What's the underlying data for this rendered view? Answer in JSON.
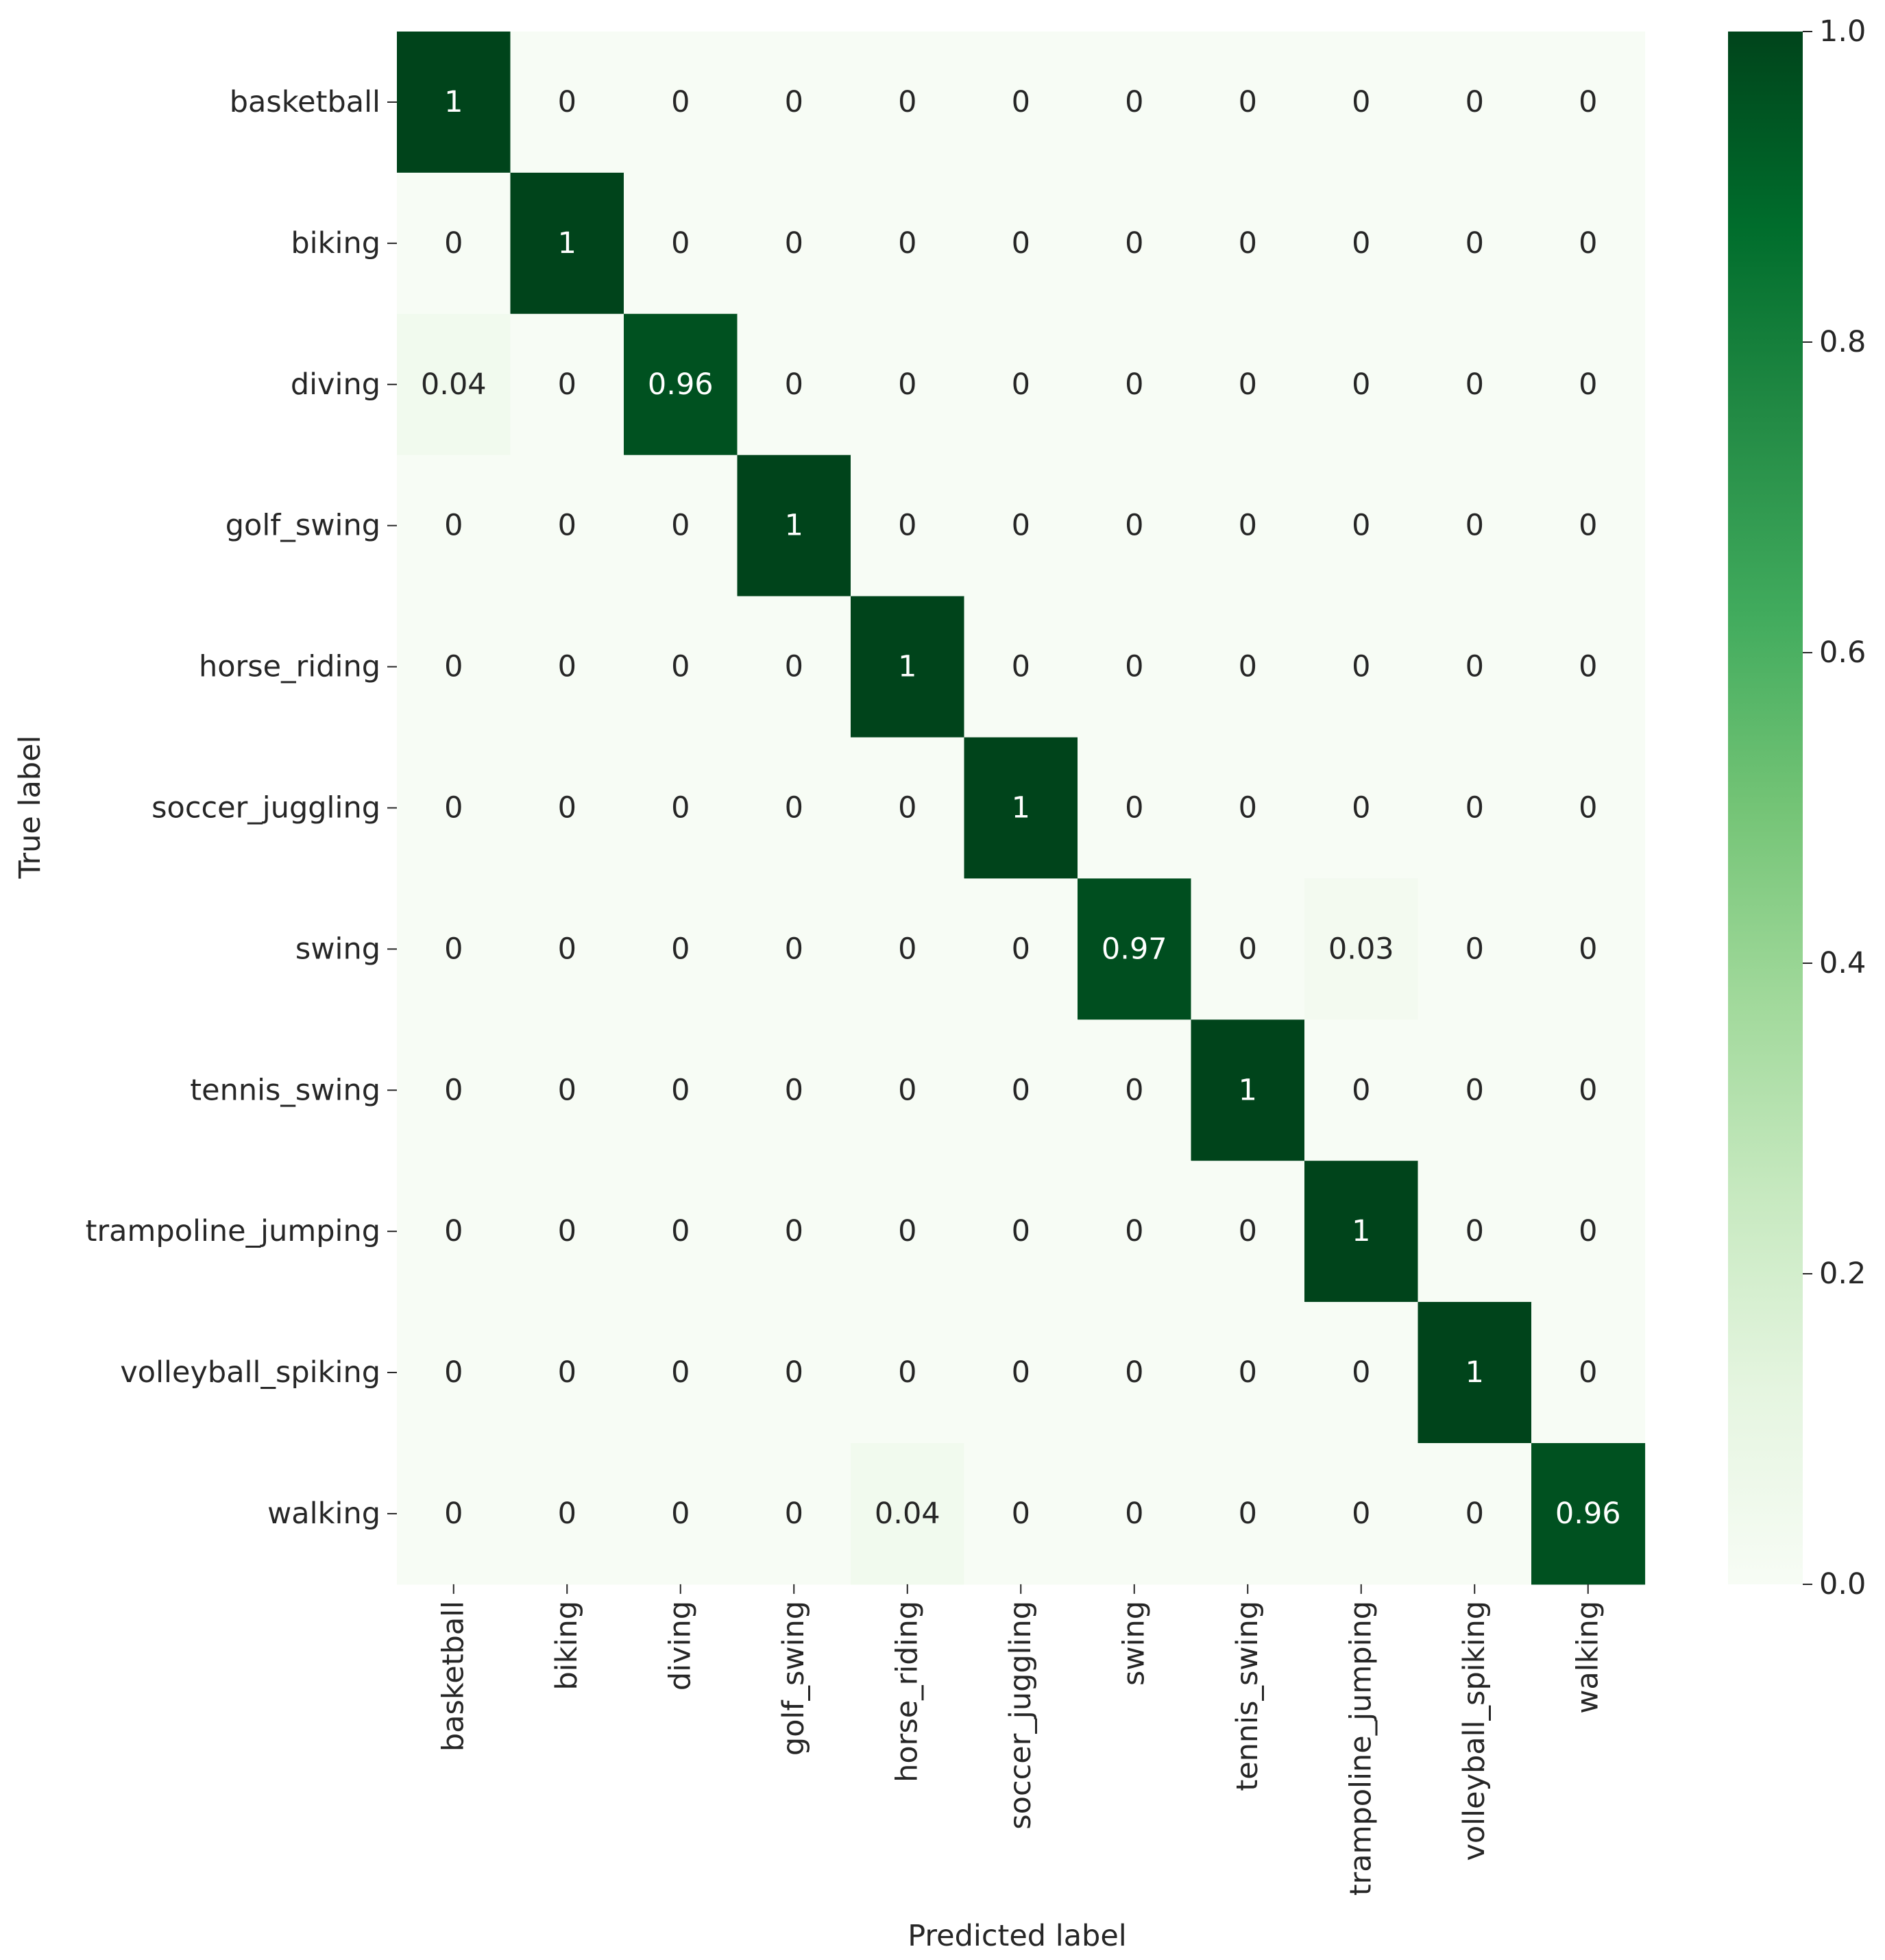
{
  "chart_data": {
    "type": "heatmap",
    "title": "",
    "xlabel": "Predicted label",
    "ylabel": "True label",
    "x_categories": [
      "basketball",
      "biking",
      "diving",
      "golf_swing",
      "horse_riding",
      "soccer_juggling",
      "swing",
      "tennis_swing",
      "trampoline_jumping",
      "volleyball_spiking",
      "walking"
    ],
    "y_categories": [
      "basketball",
      "biking",
      "diving",
      "golf_swing",
      "horse_riding",
      "soccer_juggling",
      "swing",
      "tennis_swing",
      "trampoline_jumping",
      "volleyball_spiking",
      "walking"
    ],
    "values": [
      [
        1,
        0,
        0,
        0,
        0,
        0,
        0,
        0,
        0,
        0,
        0
      ],
      [
        0,
        1,
        0,
        0,
        0,
        0,
        0,
        0,
        0,
        0,
        0
      ],
      [
        0.04,
        0,
        0.96,
        0,
        0,
        0,
        0,
        0,
        0,
        0,
        0
      ],
      [
        0,
        0,
        0,
        1,
        0,
        0,
        0,
        0,
        0,
        0,
        0
      ],
      [
        0,
        0,
        0,
        0,
        1,
        0,
        0,
        0,
        0,
        0,
        0
      ],
      [
        0,
        0,
        0,
        0,
        0,
        1,
        0,
        0,
        0,
        0,
        0
      ],
      [
        0,
        0,
        0,
        0,
        0,
        0,
        0.97,
        0,
        0.03,
        0,
        0
      ],
      [
        0,
        0,
        0,
        0,
        0,
        0,
        0,
        1,
        0,
        0,
        0
      ],
      [
        0,
        0,
        0,
        0,
        0,
        0,
        0,
        0,
        1,
        0,
        0
      ],
      [
        0,
        0,
        0,
        0,
        0,
        0,
        0,
        0,
        0,
        1,
        0
      ],
      [
        0,
        0,
        0,
        0,
        0.04,
        0,
        0,
        0,
        0,
        0,
        0.96
      ]
    ],
    "annotations": [
      [
        "1",
        "0",
        "0",
        "0",
        "0",
        "0",
        "0",
        "0",
        "0",
        "0",
        "0"
      ],
      [
        "0",
        "1",
        "0",
        "0",
        "0",
        "0",
        "0",
        "0",
        "0",
        "0",
        "0"
      ],
      [
        "0.04",
        "0",
        "0.96",
        "0",
        "0",
        "0",
        "0",
        "0",
        "0",
        "0",
        "0"
      ],
      [
        "0",
        "0",
        "0",
        "1",
        "0",
        "0",
        "0",
        "0",
        "0",
        "0",
        "0"
      ],
      [
        "0",
        "0",
        "0",
        "0",
        "1",
        "0",
        "0",
        "0",
        "0",
        "0",
        "0"
      ],
      [
        "0",
        "0",
        "0",
        "0",
        "0",
        "1",
        "0",
        "0",
        "0",
        "0",
        "0"
      ],
      [
        "0",
        "0",
        "0",
        "0",
        "0",
        "0",
        "0.97",
        "0",
        "0.03",
        "0",
        "0"
      ],
      [
        "0",
        "0",
        "0",
        "0",
        "0",
        "0",
        "0",
        "1",
        "0",
        "0",
        "0"
      ],
      [
        "0",
        "0",
        "0",
        "0",
        "0",
        "0",
        "0",
        "0",
        "1",
        "0",
        "0"
      ],
      [
        "0",
        "0",
        "0",
        "0",
        "0",
        "0",
        "0",
        "0",
        "0",
        "1",
        "0"
      ],
      [
        "0",
        "0",
        "0",
        "0",
        "0.04",
        "0",
        "0",
        "0",
        "0",
        "0",
        "0.96"
      ]
    ],
    "colormap": "Greens",
    "colormap_low": "#f7fcf5",
    "colormap_high": "#00441b",
    "vmin": 0,
    "vmax": 1,
    "colorbar": {
      "ticks": [
        0.0,
        0.2,
        0.4,
        0.6,
        0.8,
        1.0
      ],
      "tick_labels": [
        "0.0",
        "0.2",
        "0.4",
        "0.6",
        "0.8",
        "1.0"
      ]
    },
    "grid": false,
    "legend": "colorbar-right"
  }
}
